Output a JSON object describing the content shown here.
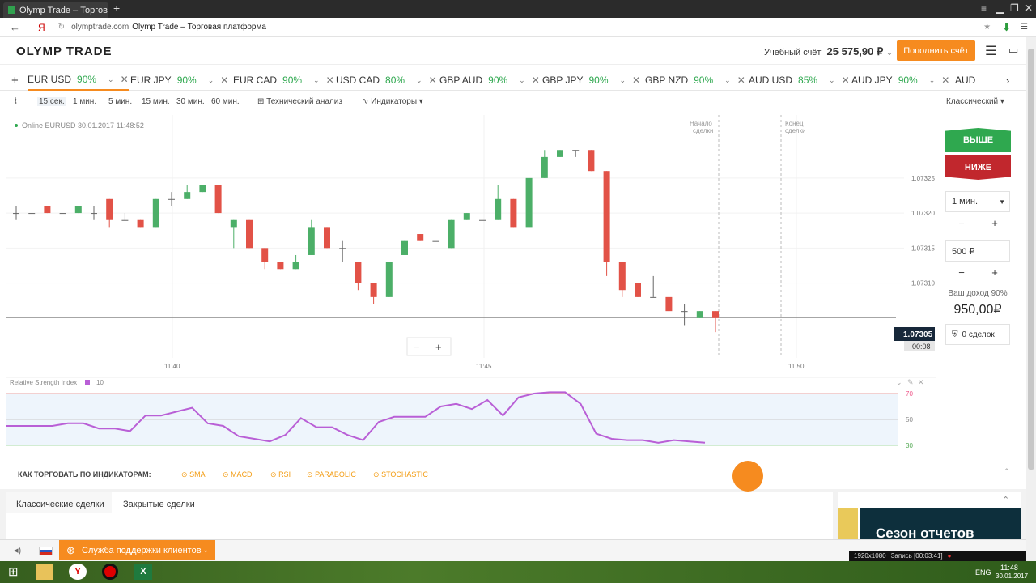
{
  "browser": {
    "tab_title": "Olymp Trade – Торговая п",
    "url_domain": "olymptrade.com",
    "url_title": "Olymp Trade – Торговая платформа",
    "new_tab": "+"
  },
  "header": {
    "logo": "OLYMP TRADE",
    "account_label": "Учебный счёт",
    "balance": "25 575,90 ₽",
    "deposit_label": "Пополнить счёт"
  },
  "pairs": [
    {
      "name": "EUR USD",
      "pct": "90%"
    },
    {
      "name": "EUR JPY",
      "pct": "90%"
    },
    {
      "name": "EUR CAD",
      "pct": "90%"
    },
    {
      "name": "USD CAD",
      "pct": "80%"
    },
    {
      "name": "GBP AUD",
      "pct": "90%"
    },
    {
      "name": "GBP JPY",
      "pct": "90%"
    },
    {
      "name": "GBP NZD",
      "pct": "90%"
    },
    {
      "name": "AUD USD",
      "pct": "85%"
    },
    {
      "name": "AUD JPY",
      "pct": "90%"
    },
    {
      "name": "AUD",
      "pct": ""
    }
  ],
  "add_pair": "+",
  "toolbar": {
    "timeframes": [
      "15 сек.",
      "1 мин.",
      "5 мин.",
      "15 мин.",
      "30 мин.",
      "60 мин."
    ],
    "tech_analysis": "Технический анализ",
    "indicators": "Индикаторы",
    "chart_style": "Классический"
  },
  "chart": {
    "status": "Online EURUSD 30.01.2017 11:48:52",
    "deal_start": "Начало сделки",
    "deal_end": "Конец сделки",
    "y_ticks": [
      "1.07325",
      "1.07320",
      "1.07315",
      "1.07310"
    ],
    "x_ticks": [
      "11:40",
      "11:45",
      "11:50"
    ],
    "current_price": "1.07305",
    "timer": "00:08",
    "zoom_out": "−",
    "zoom_in": "+"
  },
  "chart_data": {
    "type": "candlestick",
    "ylim": [
      1.07297,
      1.07334
    ],
    "yticks": [
      1.07325,
      1.0732,
      1.07315,
      1.0731
    ],
    "candles": [
      [
        1.0732,
        1.0732,
        1.07321,
        1.07319
      ],
      [
        1.0732,
        1.0732,
        1.0732,
        1.0732
      ],
      [
        1.07321,
        1.0732,
        1.07321,
        1.0732
      ],
      [
        1.0732,
        1.0732,
        1.0732,
        1.0732
      ],
      [
        1.0732,
        1.07321,
        1.07321,
        1.0732
      ],
      [
        1.0732,
        1.0732,
        1.07321,
        1.07319
      ],
      [
        1.07322,
        1.07319,
        1.07322,
        1.07318
      ],
      [
        1.07319,
        1.07319,
        1.0732,
        1.07319
      ],
      [
        1.07319,
        1.07318,
        1.07319,
        1.07318
      ],
      [
        1.07318,
        1.07322,
        1.07322,
        1.07318
      ],
      [
        1.07322,
        1.07322,
        1.07323,
        1.07321
      ],
      [
        1.07322,
        1.07323,
        1.07324,
        1.07322
      ],
      [
        1.07323,
        1.07324,
        1.07324,
        1.07323
      ],
      [
        1.07324,
        1.0732,
        1.07324,
        1.0732
      ],
      [
        1.07318,
        1.07319,
        1.07319,
        1.07315
      ],
      [
        1.07319,
        1.07315,
        1.07319,
        1.07315
      ],
      [
        1.07315,
        1.07313,
        1.07315,
        1.07312
      ],
      [
        1.07313,
        1.07312,
        1.07313,
        1.07312
      ],
      [
        1.07312,
        1.07313,
        1.07314,
        1.07312
      ],
      [
        1.07314,
        1.07318,
        1.07319,
        1.07314
      ],
      [
        1.07318,
        1.07315,
        1.07318,
        1.07315
      ],
      [
        1.07315,
        1.07315,
        1.07316,
        1.07313
      ],
      [
        1.07313,
        1.0731,
        1.07313,
        1.07309
      ],
      [
        1.0731,
        1.07308,
        1.0731,
        1.07307
      ],
      [
        1.07308,
        1.07313,
        1.07313,
        1.07308
      ],
      [
        1.07314,
        1.07316,
        1.07316,
        1.07314
      ],
      [
        1.07317,
        1.07316,
        1.07317,
        1.07316
      ],
      [
        1.07316,
        1.07316,
        1.07316,
        1.07316
      ],
      [
        1.07315,
        1.07319,
        1.07319,
        1.07315
      ],
      [
        1.07319,
        1.0732,
        1.0732,
        1.07319
      ],
      [
        1.07319,
        1.07319,
        1.07319,
        1.07319
      ],
      [
        1.07319,
        1.07322,
        1.07324,
        1.07319
      ],
      [
        1.07322,
        1.07318,
        1.07322,
        1.07318
      ],
      [
        1.07318,
        1.07325,
        1.07325,
        1.07318
      ],
      [
        1.07325,
        1.07328,
        1.07329,
        1.07325
      ],
      [
        1.07328,
        1.07329,
        1.07329,
        1.07328
      ],
      [
        1.07329,
        1.07329,
        1.07329,
        1.07328
      ],
      [
        1.07329,
        1.07326,
        1.07329,
        1.07326
      ],
      [
        1.07326,
        1.07313,
        1.07326,
        1.07311
      ],
      [
        1.07313,
        1.07309,
        1.07313,
        1.07308
      ],
      [
        1.0731,
        1.07308,
        1.0731,
        1.07308
      ],
      [
        1.07308,
        1.07308,
        1.07311,
        1.07308
      ],
      [
        1.07308,
        1.07306,
        1.07308,
        1.07306
      ],
      [
        1.07306,
        1.07306,
        1.07307,
        1.07304
      ],
      [
        1.07305,
        1.07306,
        1.07306,
        1.07305
      ],
      [
        1.07306,
        1.07305,
        1.07306,
        1.07303
      ]
    ]
  },
  "rsi": {
    "label": "Relative Strength Index",
    "period": "10",
    "levels": [
      "70",
      "50",
      "30"
    ],
    "values": [
      45,
      45,
      45,
      45,
      47,
      47,
      43,
      43,
      41,
      53,
      53,
      56,
      59,
      47,
      45,
      37,
      35,
      33,
      38,
      51,
      44,
      44,
      38,
      34,
      48,
      52,
      52,
      52,
      60,
      62,
      58,
      65,
      53,
      67,
      70,
      71,
      71,
      62,
      39,
      35,
      34,
      34,
      32,
      34,
      33,
      32
    ]
  },
  "panel": {
    "up": "ВЫШЕ",
    "down": "НИЖЕ",
    "time": "1 мин.",
    "amount": "500 ₽",
    "minus": "−",
    "plus": "+",
    "income_label": "Ваш доход 90%",
    "income": "950,00₽",
    "deals": "0 сделок"
  },
  "indicators_bar": {
    "title": "КАК ТОРГОВАТЬ ПО ИНДИКАТОРАМ:",
    "items": [
      "SMA",
      "MACD",
      "RSI",
      "PARABOLIC",
      "STOCHASTIC"
    ]
  },
  "bottom": {
    "tab1": "Классические сделки",
    "tab2": "Закрытые сделки",
    "promo": "Сезон отчетов"
  },
  "support": "Служба поддержки клиентов",
  "recorder": {
    "resolution": "1920x1080",
    "record": "Запись [00:03:41]"
  },
  "taskbar": {
    "lang": "ENG",
    "time": "11:48",
    "date": "30.01.2017"
  },
  "colors": {
    "up": "#4caf68",
    "down": "#e25247",
    "accent": "#f68b1f",
    "rsi": "#b95fd6"
  }
}
